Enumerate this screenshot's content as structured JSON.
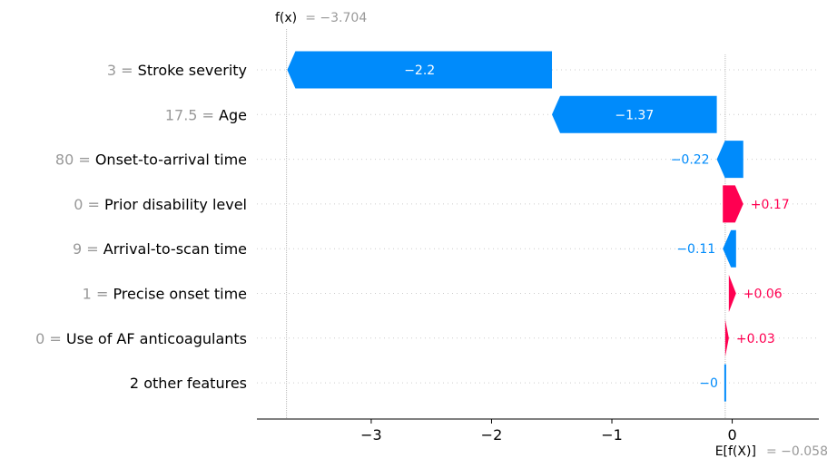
{
  "chart_data": {
    "type": "bar",
    "subtype": "waterfall",
    "fx_label": "f(x)",
    "fx_value_text": "= −3.704",
    "fx": -3.704,
    "efx_label": "E[f(X)]",
    "efx_value_text": "= −0.058",
    "efx": -0.058,
    "xlim": [
      -3.95,
      0.72
    ],
    "xticks": [
      {
        "value": -3,
        "label": "−3"
      },
      {
        "value": -2,
        "label": "−2"
      },
      {
        "value": -1,
        "label": "−1"
      },
      {
        "value": 0,
        "label": "0"
      }
    ],
    "colors": {
      "negative": "#008bfb",
      "positive": "#ff0051"
    },
    "features": [
      {
        "value_text": "3 =",
        "name": "Stroke severity",
        "shap": -2.2,
        "label": "−2.2"
      },
      {
        "value_text": "17.5 =",
        "name": "Age",
        "shap": -1.37,
        "label": "−1.37"
      },
      {
        "value_text": "80 =",
        "name": "Onset-to-arrival time",
        "shap": -0.22,
        "label": "−0.22"
      },
      {
        "value_text": "0 =",
        "name": "Prior disability level",
        "shap": 0.17,
        "label": "+0.17"
      },
      {
        "value_text": "9 =",
        "name": "Arrival-to-scan time",
        "shap": -0.11,
        "label": "−0.11"
      },
      {
        "value_text": "1 =",
        "name": "Precise onset time",
        "shap": 0.06,
        "label": "+0.06"
      },
      {
        "value_text": "0 =",
        "name": "Use of AF anticoagulants",
        "shap": 0.03,
        "label": "+0.03"
      },
      {
        "value_text": "",
        "name": "2 other features",
        "shap": -0.0,
        "label": "−0"
      }
    ]
  }
}
